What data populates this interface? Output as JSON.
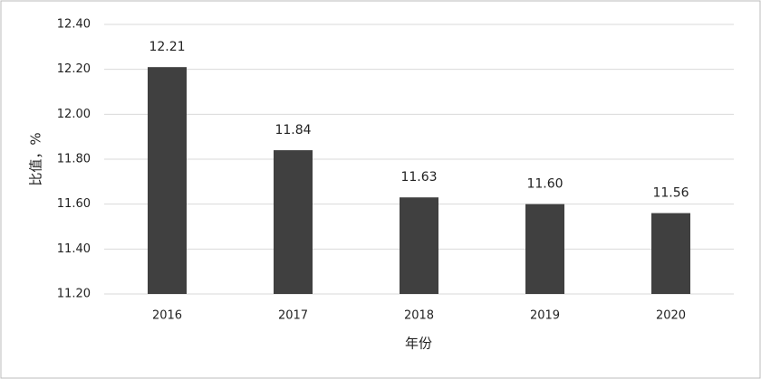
{
  "chart_data": {
    "type": "bar",
    "x_label": "年份",
    "y_label": "比值，%",
    "categories": [
      "2016",
      "2017",
      "2018",
      "2019",
      "2020"
    ],
    "values": [
      12.21,
      11.84,
      11.63,
      11.6,
      11.56
    ],
    "value_labels": [
      "12.21",
      "11.84",
      "11.63",
      "11.60",
      "11.56"
    ],
    "color": "#404040",
    "ylim": [
      11.2,
      12.4
    ],
    "yticks": [
      {
        "value": 11.2,
        "label": "11.20"
      },
      {
        "value": 11.4,
        "label": "11.40"
      },
      {
        "value": 11.6,
        "label": "11.60"
      },
      {
        "value": 11.8,
        "label": "11.80"
      },
      {
        "value": 12.0,
        "label": "12.00"
      },
      {
        "value": 12.2,
        "label": "12.20"
      },
      {
        "value": 12.4,
        "label": "12.40"
      }
    ],
    "grid": true
  }
}
